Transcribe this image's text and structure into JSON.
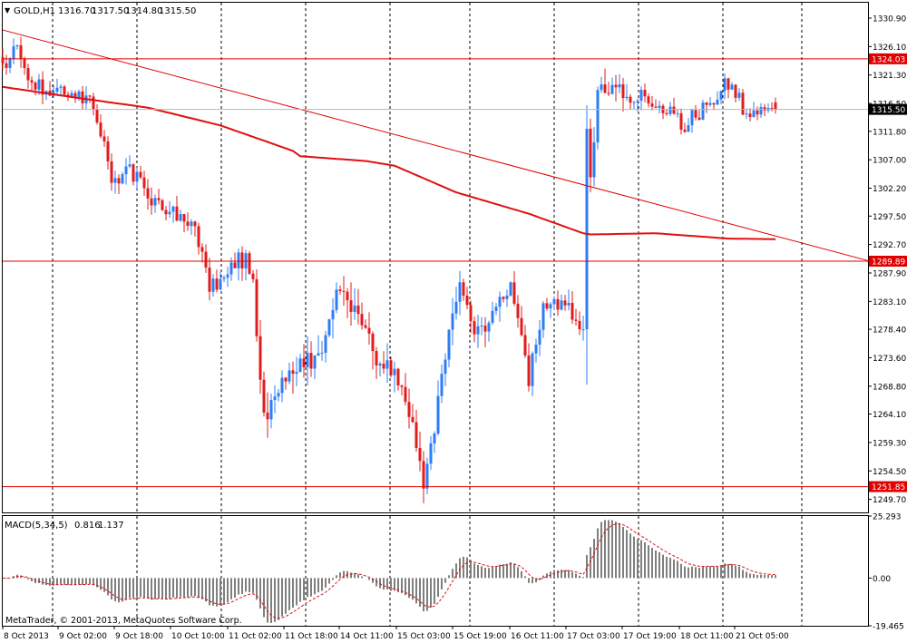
{
  "main_panel": {
    "symbol_label": "GOLD,H1",
    "ohlc": {
      "open": "1316.70",
      "high": "1317.50",
      "low": "1314.80",
      "close": "1315.50"
    },
    "ylim": [
      1247.5,
      1333.5
    ],
    "price_ticks": [
      "1330.90",
      "1326.10",
      "1321.30",
      "1316.50",
      "1311.80",
      "1307.00",
      "1302.20",
      "1297.50",
      "1292.70",
      "1287.90",
      "1283.10",
      "1278.40",
      "1273.60",
      "1268.80",
      "1264.10",
      "1259.30",
      "1254.50",
      "1249.70"
    ],
    "current_price_label": "1315.50",
    "current_price": 1315.5,
    "horizontal_lines": [
      {
        "price": 1324.03,
        "label": "1324.03"
      },
      {
        "price": 1289.89,
        "label": "1289.89"
      },
      {
        "price": 1251.85,
        "label": "1251.85"
      }
    ],
    "trendline": {
      "from": {
        "bar": 0,
        "price": 1328.9
      },
      "to": {
        "bar": 239,
        "price": 1289.9
      }
    }
  },
  "macd_panel": {
    "label": "MACD(5,34,5)",
    "value1": "0.816",
    "value2": "1.137",
    "ylim": [
      -19.465,
      25.293
    ],
    "ticks": [
      "25.293",
      "0.00",
      "-19.465"
    ]
  },
  "x_axis": {
    "labels": [
      "8 Oct 2013",
      "9 Oct 02:00",
      "9 Oct 18:00",
      "10 Oct 10:00",
      "11 Oct 02:00",
      "11 Oct 18:00",
      "14 Oct 11:00",
      "15 Oct 03:00",
      "15 Oct 19:00",
      "16 Oct 11:00",
      "17 Oct 03:00",
      "17 Oct 19:00",
      "18 Oct 11:00",
      "21 Oct 05:00"
    ]
  },
  "copyright": "MetaTrader, © 2001-2013, MetaQuotes Software Corp.",
  "colors": {
    "up": "#2e7cf6",
    "down": "#e21b1b",
    "ma": "#e01010",
    "level": "#e00000",
    "grid": "#000000",
    "macd_hist": "#7f7f7f",
    "macd_signal": "#e01010"
  },
  "chart_data": {
    "type": "candlestick",
    "timeframe": "H1",
    "bar_count": 214,
    "ma_anchors": [
      [
        0,
        1319.3
      ],
      [
        20,
        1317.5
      ],
      [
        40,
        1315.8
      ],
      [
        60,
        1312.8
      ],
      [
        80,
        1308.5
      ],
      [
        82,
        1307.6
      ],
      [
        100,
        1306.8
      ],
      [
        108,
        1306.0
      ],
      [
        125,
        1301.5
      ],
      [
        145,
        1297.9
      ],
      [
        160,
        1294.6
      ],
      [
        162,
        1294.4
      ],
      [
        180,
        1294.6
      ],
      [
        200,
        1293.7
      ],
      [
        213,
        1293.6
      ]
    ],
    "price_path": [
      [
        0,
        1322
      ],
      [
        4,
        1326
      ],
      [
        7,
        1321
      ],
      [
        12,
        1319
      ],
      [
        18,
        1318
      ],
      [
        24,
        1317
      ],
      [
        27,
        1312
      ],
      [
        30,
        1303
      ],
      [
        34,
        1306
      ],
      [
        40,
        1301
      ],
      [
        47,
        1298
      ],
      [
        53,
        1295
      ],
      [
        57,
        1285
      ],
      [
        60,
        1287
      ],
      [
        64,
        1290
      ],
      [
        67,
        1290
      ],
      [
        69,
        1286
      ],
      [
        72,
        1263
      ],
      [
        77,
        1270
      ],
      [
        82,
        1273
      ],
      [
        87,
        1273
      ],
      [
        92,
        1285
      ],
      [
        95,
        1284
      ],
      [
        100,
        1278
      ],
      [
        104,
        1272
      ],
      [
        108,
        1272
      ],
      [
        113,
        1263
      ],
      [
        116,
        1253
      ],
      [
        119,
        1262
      ],
      [
        123,
        1278
      ],
      [
        126,
        1285
      ],
      [
        130,
        1278
      ],
      [
        135,
        1280
      ],
      [
        140,
        1286
      ],
      [
        143,
        1278
      ],
      [
        145,
        1270
      ],
      [
        149,
        1283
      ],
      [
        155,
        1283
      ],
      [
        160,
        1277
      ],
      [
        161,
        1313
      ],
      [
        162,
        1303
      ],
      [
        164,
        1318
      ],
      [
        168,
        1320
      ],
      [
        172,
        1317
      ],
      [
        176,
        1318
      ],
      [
        182,
        1316
      ],
      [
        188,
        1313
      ],
      [
        194,
        1316
      ],
      [
        200,
        1320
      ],
      [
        205,
        1315
      ],
      [
        213,
        1315.5
      ]
    ],
    "volatility": [
      [
        0,
        1.6
      ],
      [
        70,
        2.2
      ],
      [
        72,
        3.5
      ],
      [
        160,
        2.3
      ],
      [
        161,
        12
      ],
      [
        162,
        3
      ],
      [
        180,
        1.6
      ],
      [
        213,
        1.4
      ]
    ],
    "last_candle": {
      "open": 1316.7,
      "high": 1317.5,
      "low": 1314.8,
      "close": 1315.5
    },
    "macd": {
      "fast": 5,
      "slow": 34,
      "signal": 5,
      "last_macd": 0.816,
      "last_signal": 1.137
    }
  }
}
